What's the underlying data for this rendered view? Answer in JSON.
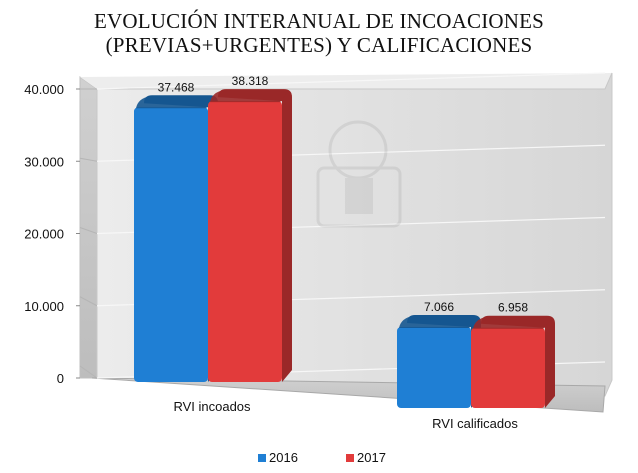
{
  "chart_data": {
    "type": "bar",
    "title": [
      "EVOLUCIÓN INTERANUAL DE INCOACIONES",
      "(PREVIAS+URGENTES) Y CALIFICACIONES"
    ],
    "categories": [
      "RVI incoados",
      "RVI calificados"
    ],
    "series": [
      {
        "name": "2016",
        "values": [
          37468,
          7066
        ],
        "labels": [
          "37.468",
          "7.066"
        ],
        "color": "#1f7fd4"
      },
      {
        "name": "2017",
        "values": [
          38318,
          6958
        ],
        "labels": [
          "38.318",
          "6.958"
        ],
        "color": "#e23b3b"
      }
    ],
    "yticks": [
      0,
      10000,
      20000,
      30000,
      40000
    ],
    "ytick_labels": [
      "0",
      "10.000",
      "20.000",
      "30.000",
      "40.000"
    ],
    "ylim": [
      0,
      40000
    ],
    "grid": true,
    "legend_position": "bottom",
    "xlabel": "",
    "ylabel": ""
  }
}
